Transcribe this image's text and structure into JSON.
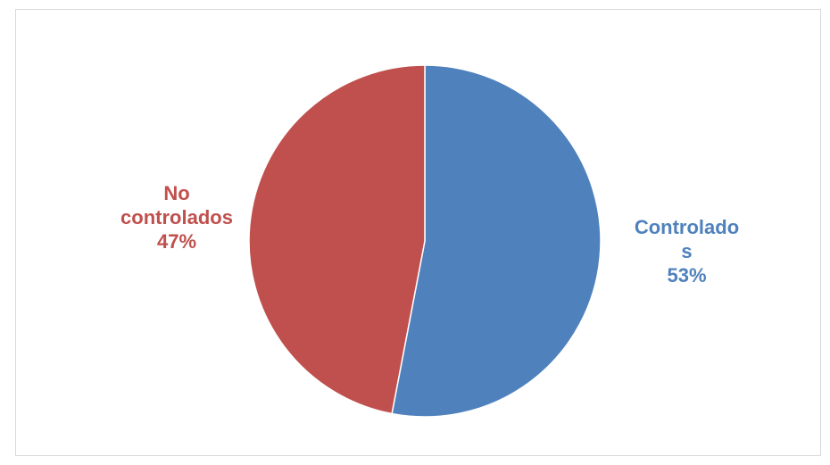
{
  "chart_data": {
    "type": "pie",
    "slices": [
      {
        "label_lines": [
          "Controlado",
          "s"
        ],
        "percent_text": "53%",
        "value": 53,
        "color": "#4f81bd"
      },
      {
        "label_lines": [
          "No",
          "controlados"
        ],
        "percent_text": "47%",
        "value": 47,
        "color": "#c0504d"
      }
    ],
    "legend": "none"
  }
}
